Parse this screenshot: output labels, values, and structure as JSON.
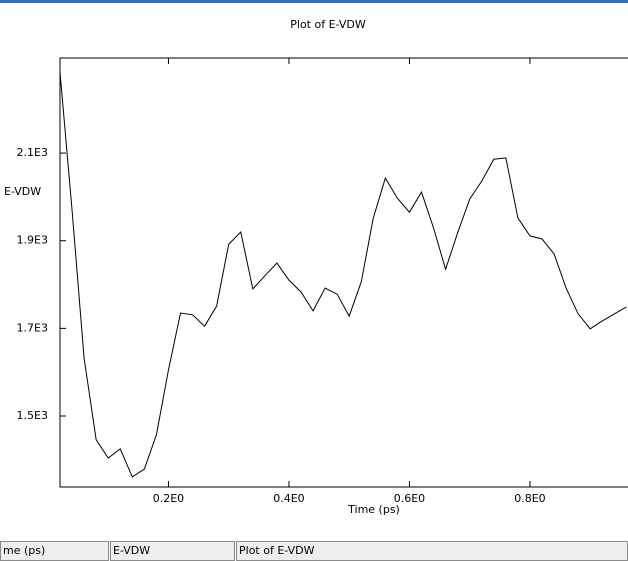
{
  "chart_data": {
    "type": "line",
    "title": "Plot of E-VDW",
    "x_label": "Time (ps)",
    "y_label": "E-VDW",
    "x": [
      0.02,
      0.04,
      0.06,
      0.08,
      0.1,
      0.12,
      0.14,
      0.16,
      0.18,
      0.2,
      0.22,
      0.24,
      0.26,
      0.28,
      0.3,
      0.32,
      0.34,
      0.36,
      0.38,
      0.4,
      0.42,
      0.44,
      0.46,
      0.48,
      0.5,
      0.52,
      0.54,
      0.56,
      0.58,
      0.6,
      0.62,
      0.64,
      0.66,
      0.68,
      0.7,
      0.72,
      0.74,
      0.76,
      0.78,
      0.8,
      0.82,
      0.84,
      0.86,
      0.88,
      0.9,
      0.92,
      0.94,
      0.96
    ],
    "series": [
      {
        "name": "E-VDW",
        "color": "#000000",
        "values": [
          2285,
          1970,
          1632,
          1446,
          1404,
          1425,
          1361,
          1379,
          1457,
          1605,
          1735,
          1731,
          1705,
          1751,
          1892,
          1920,
          1790,
          1820,
          1849,
          1810,
          1783,
          1740,
          1792,
          1778,
          1728,
          1806,
          1952,
          2043,
          1997,
          1965,
          2011,
          1929,
          1835,
          1918,
          1995,
          2036,
          2086,
          2089,
          1952,
          1911,
          1904,
          1870,
          1792,
          1733,
          1699,
          1717,
          1733,
          1749
        ]
      }
    ],
    "xlim": [
      0.02,
      1.0
    ],
    "ylim": [
      1338,
      2317
    ],
    "xticks": [
      {
        "value": 0.2,
        "label": "0.2E0"
      },
      {
        "value": 0.4,
        "label": "0.4E0"
      },
      {
        "value": 0.6,
        "label": "0.6E0"
      },
      {
        "value": 0.8,
        "label": "0.8E0"
      }
    ],
    "yticks": [
      {
        "value": 1500,
        "label": "1.5E3"
      },
      {
        "value": 1700,
        "label": "1.7E3"
      },
      {
        "value": 1900,
        "label": "1.9E3"
      },
      {
        "value": 2100,
        "label": "2.1E3"
      }
    ],
    "grid": false
  },
  "status_bar": {
    "fields": [
      "me (ps)",
      "E-VDW",
      "Plot of E-VDW"
    ]
  }
}
